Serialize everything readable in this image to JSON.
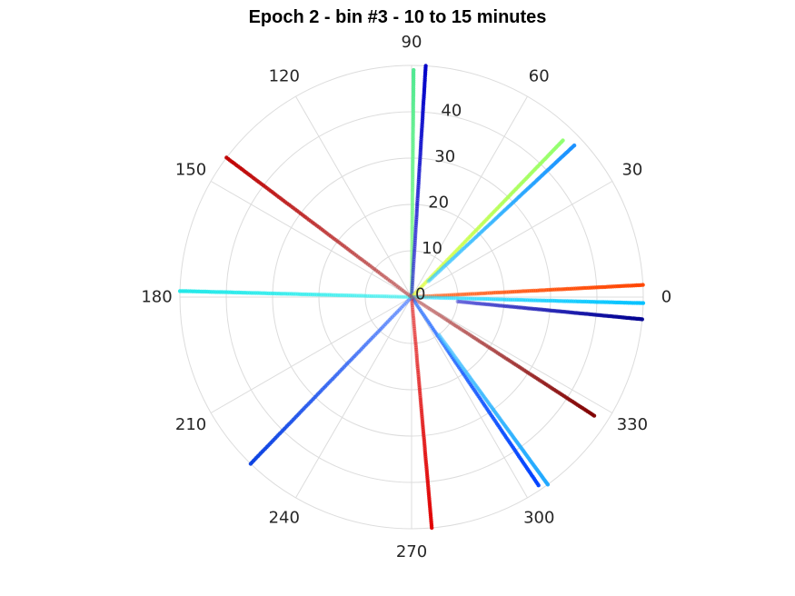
{
  "chart_data": {
    "type": "scatter",
    "coordinate_system": "polar",
    "title": "Epoch 2 - bin #3 - 10 to 15 minutes",
    "theta_ticks": [
      "0",
      "30",
      "60",
      "90",
      "120",
      "150",
      "180",
      "210",
      "240",
      "270",
      "300",
      "330"
    ],
    "r_ticks": [
      "0",
      "10",
      "20",
      "30",
      "40"
    ],
    "rlim": [
      0,
      50
    ],
    "grid": true,
    "series": [
      {
        "theta": 89.5,
        "r_start": 0,
        "r_end": 49,
        "color_start": "#7fff7f",
        "color_end": "#4fe890"
      },
      {
        "theta": 86.5,
        "r_start": 0,
        "r_end": 50,
        "color_start": "#2020d0",
        "color_end": "#0000c8"
      },
      {
        "theta": 46,
        "r_start": 0,
        "r_end": 47,
        "color_start": "#e0ff20",
        "color_end": "#90ff70"
      },
      {
        "theta": 43,
        "r_start": 5,
        "r_end": 48,
        "color_start": "#30c8ff",
        "color_end": "#1a90ff"
      },
      {
        "theta": 3,
        "r_start": 0,
        "r_end": 50,
        "color_start": "#ff5000",
        "color_end": "#ff4400"
      },
      {
        "theta": -1.5,
        "r_start": 0,
        "r_end": 50,
        "color_start": "#20e0ff",
        "color_end": "#00c0ff"
      },
      {
        "theta": -5.5,
        "r_start": 10,
        "r_end": 50,
        "color_start": "#3030d0",
        "color_end": "#00008f"
      },
      {
        "theta": -33,
        "r_start": 0,
        "r_end": 47,
        "color_start": "#c06060",
        "color_end": "#800000"
      },
      {
        "theta": -56,
        "r_start": 0,
        "r_end": 49,
        "color_start": "#1060ff",
        "color_end": "#0040ff"
      },
      {
        "theta": -54,
        "r_start": 10,
        "r_end": 50,
        "color_start": "#40c0ff",
        "color_end": "#20a8ff"
      },
      {
        "theta": -85,
        "r_start": 0,
        "r_end": 50,
        "color_start": "#e02020",
        "color_end": "#e00000"
      },
      {
        "theta": -134,
        "r_start": 0,
        "r_end": 50,
        "color_start": "#3a70ff",
        "color_end": "#0a40e0"
      },
      {
        "theta": 178.5,
        "r_start": 0,
        "r_end": 50,
        "color_start": "#30f0f0",
        "color_end": "#20e8e8"
      },
      {
        "theta": 143,
        "r_start": 0,
        "r_end": 50,
        "color_start": "#b04040",
        "color_end": "#c00000"
      }
    ]
  }
}
